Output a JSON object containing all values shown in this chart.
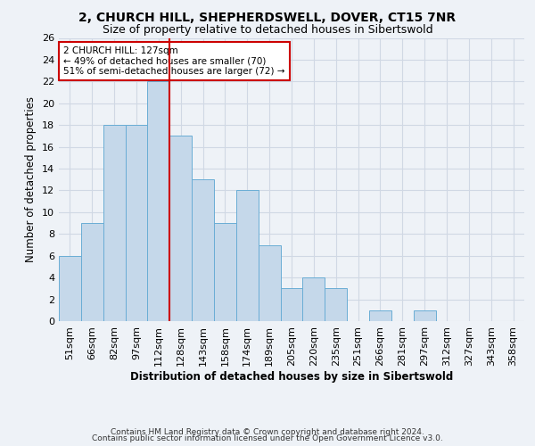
{
  "title1": "2, CHURCH HILL, SHEPHERDSWELL, DOVER, CT15 7NR",
  "title2": "Size of property relative to detached houses in Sibertswold",
  "xlabel": "Distribution of detached houses by size in Sibertswold",
  "ylabel": "Number of detached properties",
  "footer1": "Contains HM Land Registry data © Crown copyright and database right 2024.",
  "footer2": "Contains public sector information licensed under the Open Government Licence v3.0.",
  "categories": [
    "51sqm",
    "66sqm",
    "82sqm",
    "97sqm",
    "112sqm",
    "128sqm",
    "143sqm",
    "158sqm",
    "174sqm",
    "189sqm",
    "205sqm",
    "220sqm",
    "235sqm",
    "251sqm",
    "266sqm",
    "281sqm",
    "297sqm",
    "312sqm",
    "327sqm",
    "343sqm",
    "358sqm"
  ],
  "values": [
    6,
    9,
    18,
    18,
    22,
    17,
    13,
    9,
    12,
    7,
    3,
    4,
    3,
    0,
    1,
    0,
    1,
    0,
    0,
    0,
    0
  ],
  "bar_color": "#c5d8ea",
  "bar_edge_color": "#6aadd5",
  "highlight_index": 5,
  "highlight_line_color": "#cc0000",
  "annotation_text1": "2 CHURCH HILL: 127sqm",
  "annotation_text2": "← 49% of detached houses are smaller (70)",
  "annotation_text3": "51% of semi-detached houses are larger (72) →",
  "annotation_box_color": "white",
  "annotation_box_edge": "#cc0000",
  "ylim": [
    0,
    26
  ],
  "yticks": [
    0,
    2,
    4,
    6,
    8,
    10,
    12,
    14,
    16,
    18,
    20,
    22,
    24,
    26
  ],
  "background_color": "#eef2f7",
  "grid_color": "#d0d8e4",
  "title1_fontsize": 10,
  "title2_fontsize": 9,
  "ylabel_fontsize": 8.5,
  "tick_fontsize": 8,
  "annotation_fontsize": 7.5,
  "footer_fontsize": 6.5,
  "xlabel_fontsize": 8.5
}
